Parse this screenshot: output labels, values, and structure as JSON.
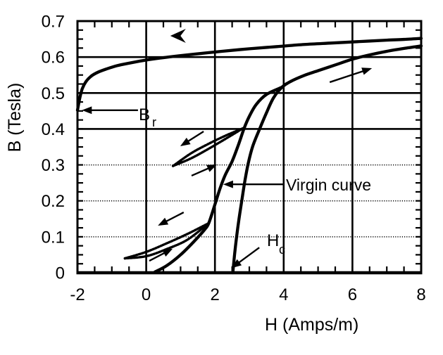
{
  "figure": {
    "background": "#ffffff",
    "ink_color": "#000000"
  },
  "chart_data": {
    "type": "line",
    "title": "",
    "xlabel": "H (Amps/m)",
    "ylabel": "B (Tesla)",
    "xlim": [
      -2,
      8
    ],
    "ylim": [
      0,
      0.7
    ],
    "xticks": [
      -2,
      0,
      2,
      4,
      6,
      8
    ],
    "yticks": [
      0,
      0.1,
      0.2,
      0.3,
      0.4,
      0.5,
      0.6,
      0.7
    ],
    "x_minor_step": 0.5,
    "y_minor_step": 0.025,
    "grid": {
      "x_major": [
        0,
        2,
        4,
        6
      ],
      "y_solid": [
        0.4,
        0.5,
        0.6
      ],
      "y_dotted": [
        0.1,
        0.2,
        0.3
      ]
    },
    "series": [
      {
        "name": "upper-branch",
        "style": "solid",
        "points": [
          [
            -2,
            0.452
          ],
          [
            -1.93,
            0.487
          ],
          [
            -1.86,
            0.512
          ],
          [
            -1.75,
            0.532
          ],
          [
            -1.6,
            0.547
          ],
          [
            -1.4,
            0.558
          ],
          [
            -1.15,
            0.567
          ],
          [
            -0.85,
            0.576
          ],
          [
            -0.5,
            0.583
          ],
          [
            -0.1,
            0.59
          ],
          [
            0.4,
            0.597
          ],
          [
            1,
            0.604
          ],
          [
            1.6,
            0.61
          ],
          [
            2.2,
            0.616
          ],
          [
            3,
            0.623
          ],
          [
            3.8,
            0.629
          ],
          [
            4.6,
            0.635
          ],
          [
            5.4,
            0.639
          ],
          [
            6.2,
            0.643
          ],
          [
            7,
            0.647
          ],
          [
            7.5,
            0.649
          ],
          [
            8,
            0.652
          ]
        ]
      },
      {
        "name": "ascending-branch",
        "style": "solid",
        "points": [
          [
            2.52,
            0.0
          ],
          [
            2.57,
            0.05
          ],
          [
            2.63,
            0.1
          ],
          [
            2.7,
            0.15
          ],
          [
            2.78,
            0.2
          ],
          [
            2.87,
            0.255
          ],
          [
            2.97,
            0.305
          ],
          [
            3.1,
            0.352
          ],
          [
            3.3,
            0.4
          ],
          [
            3.5,
            0.445
          ],
          [
            3.7,
            0.486
          ],
          [
            3.95,
            0.516
          ],
          [
            4.2,
            0.532
          ],
          [
            4.6,
            0.549
          ],
          [
            5.0,
            0.562
          ],
          [
            5.5,
            0.578
          ],
          [
            6.0,
            0.594
          ],
          [
            6.5,
            0.606
          ],
          [
            7.0,
            0.616
          ],
          [
            7.5,
            0.624
          ],
          [
            8.0,
            0.631
          ]
        ]
      },
      {
        "name": "virgin-curve",
        "style": "solid",
        "points": [
          [
            0.25,
            0.002
          ],
          [
            0.6,
            0.02
          ],
          [
            1.0,
            0.05
          ],
          [
            1.4,
            0.088
          ],
          [
            1.7,
            0.12
          ],
          [
            1.82,
            0.138
          ],
          [
            2.0,
            0.19
          ],
          [
            2.15,
            0.235
          ],
          [
            2.3,
            0.272
          ],
          [
            2.5,
            0.31
          ],
          [
            2.68,
            0.355
          ],
          [
            2.85,
            0.402
          ],
          [
            3.0,
            0.435
          ],
          [
            3.2,
            0.468
          ],
          [
            3.5,
            0.496
          ],
          [
            3.95,
            0.516
          ]
        ]
      },
      {
        "name": "minor-loop-upper-top",
        "style": "beaded",
        "points": [
          [
            0.78,
            0.297
          ],
          [
            1.3,
            0.332
          ],
          [
            1.8,
            0.358
          ],
          [
            2.3,
            0.381
          ],
          [
            2.82,
            0.402
          ]
        ]
      },
      {
        "name": "minor-loop-upper-bottom",
        "style": "beaded",
        "points": [
          [
            0.78,
            0.297
          ],
          [
            1.3,
            0.318
          ],
          [
            1.8,
            0.344
          ],
          [
            2.3,
            0.372
          ],
          [
            2.82,
            0.402
          ]
        ]
      },
      {
        "name": "minor-loop-lower-top",
        "style": "beaded",
        "points": [
          [
            -0.62,
            0.04
          ],
          [
            0.0,
            0.058
          ],
          [
            0.6,
            0.082
          ],
          [
            1.2,
            0.108
          ],
          [
            1.82,
            0.138
          ]
        ]
      },
      {
        "name": "minor-loop-lower-bottom",
        "style": "beaded",
        "points": [
          [
            -0.62,
            0.04
          ],
          [
            0.0,
            0.046
          ],
          [
            0.6,
            0.066
          ],
          [
            1.2,
            0.092
          ],
          [
            1.82,
            0.138
          ]
        ]
      }
    ],
    "annotations": {
      "br": {
        "text": "B",
        "sub": "r"
      },
      "hc": {
        "text": "H",
        "sub": "c"
      },
      "virgin_curve": {
        "text": "Virgin curve"
      },
      "arrows": [
        {
          "name": "br-arrow",
          "from": [
            -0.24,
            0.452
          ],
          "to": [
            -1.87,
            0.452
          ]
        },
        {
          "name": "upper-loop-left-arrow",
          "from": [
            1.67,
            0.393
          ],
          "to": [
            0.99,
            0.352
          ]
        },
        {
          "name": "upper-loop-right-arrow",
          "from": [
            1.32,
            0.27
          ],
          "to": [
            2.06,
            0.301
          ]
        },
        {
          "name": "ascending-direction-arrow",
          "from": [
            5.34,
            0.53
          ],
          "to": [
            6.57,
            0.569
          ]
        },
        {
          "name": "virgin-curve-arrow",
          "from": [
            3.98,
            0.246
          ],
          "to": [
            2.24,
            0.246
          ]
        },
        {
          "name": "hc-arrow",
          "from": [
            3.29,
            0.07
          ],
          "to": [
            2.48,
            0.013
          ]
        },
        {
          "name": "lower-loop-left-arrow",
          "from": [
            1.09,
            0.168
          ],
          "to": [
            0.34,
            0.131
          ]
        },
        {
          "name": "lower-loop-right-arrow",
          "from": [
            0.09,
            0.033
          ],
          "to": [
            0.77,
            0.067
          ]
        }
      ],
      "chevron": {
        "name": "top-branch-direction-chevron",
        "at": [
          0.7,
          0.659
        ],
        "direction": "left"
      }
    }
  }
}
